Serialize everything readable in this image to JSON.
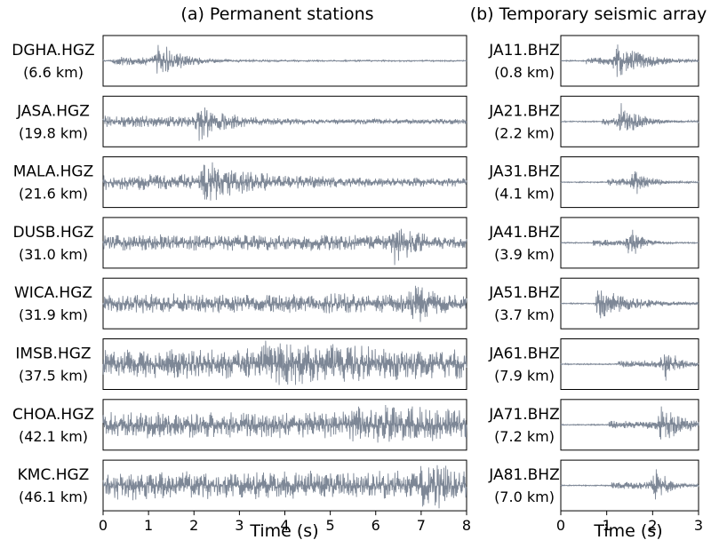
{
  "chart_data": [
    {
      "type": "line",
      "panel": "a",
      "title": "(a) Permanent stations",
      "xlabel": "Time (s)",
      "xlim": [
        0,
        8
      ],
      "xticks": [
        0,
        1,
        2,
        3,
        4,
        5,
        6,
        7,
        8
      ],
      "waveform_color": "#7d8796",
      "traces": [
        {
          "station": "DGHA.HGZ",
          "distance": "(6.6 km)",
          "onset": 0.2,
          "peak": 1.2,
          "amp": 0.9,
          "noise": 0.03,
          "decay": 0.5
        },
        {
          "station": "JASA.HGZ",
          "distance": "(19.8 km)",
          "onset": 0.0,
          "peak": 2.1,
          "amp": 0.8,
          "noise": 0.12,
          "decay": 0.6
        },
        {
          "station": "MALA.HGZ",
          "distance": "(21.6 km)",
          "onset": 0.0,
          "peak": 2.2,
          "amp": 0.8,
          "noise": 0.2,
          "decay": 1.0
        },
        {
          "station": "DUSB.HGZ",
          "distance": "(31.0 km)",
          "onset": 0.0,
          "peak": 6.4,
          "amp": 0.9,
          "noise": 0.2,
          "decay": 0.5
        },
        {
          "station": "WICA.HGZ",
          "distance": "(31.9 km)",
          "onset": 0.0,
          "peak": 6.8,
          "amp": 0.85,
          "noise": 0.28,
          "decay": 0.4
        },
        {
          "station": "IMSB.HGZ",
          "distance": "(37.5 km)",
          "onset": 0.0,
          "peak": 3.5,
          "amp": 0.5,
          "noise": 0.6,
          "decay": 3.0
        },
        {
          "station": "CHOA.HGZ",
          "distance": "(42.1 km)",
          "onset": 0.0,
          "peak": 5.5,
          "amp": 0.5,
          "noise": 0.5,
          "decay": 3.0
        },
        {
          "station": "KMC.HGZ",
          "distance": "(46.1 km)",
          "onset": 0.0,
          "peak": 7.0,
          "amp": 0.5,
          "noise": 0.55,
          "decay": 3.0
        }
      ]
    },
    {
      "type": "line",
      "panel": "b",
      "title": "(b) Temporary seismic array",
      "xlabel": "Time (s)",
      "xlim": [
        0,
        3
      ],
      "xticks": [
        0,
        1,
        2,
        3
      ],
      "waveform_color": "#7d8796",
      "traces": [
        {
          "station": "JA11.BHZ",
          "distance": "(0.8 km)",
          "onset": 0.55,
          "peak": 1.2,
          "amp": 0.85,
          "noise": 0.02,
          "decay": 0.6
        },
        {
          "station": "JA21.BHZ",
          "distance": "(2.2 km)",
          "onset": 0.9,
          "peak": 1.3,
          "amp": 0.8,
          "noise": 0.02,
          "decay": 0.4
        },
        {
          "station": "JA31.BHZ",
          "distance": "(4.1 km)",
          "onset": 1.0,
          "peak": 1.6,
          "amp": 0.75,
          "noise": 0.02,
          "decay": 0.3
        },
        {
          "station": "JA41.BHZ",
          "distance": "(3.9 km)",
          "onset": 0.7,
          "peak": 1.5,
          "amp": 0.8,
          "noise": 0.02,
          "decay": 0.25
        },
        {
          "station": "JA51.BHZ",
          "distance": "(3.7 km)",
          "onset": 0.75,
          "peak": 0.8,
          "amp": 0.8,
          "noise": 0.02,
          "decay": 0.7
        },
        {
          "station": "JA61.BHZ",
          "distance": "(7.9 km)",
          "onset": 1.25,
          "peak": 2.25,
          "amp": 0.8,
          "noise": 0.02,
          "decay": 0.3
        },
        {
          "station": "JA71.BHZ",
          "distance": "(7.2 km)",
          "onset": 1.05,
          "peak": 2.15,
          "amp": 0.85,
          "noise": 0.02,
          "decay": 0.6
        },
        {
          "station": "JA81.BHZ",
          "distance": "(7.0 km)",
          "onset": 1.1,
          "peak": 2.05,
          "amp": 0.8,
          "noise": 0.02,
          "decay": 0.3
        }
      ]
    }
  ]
}
